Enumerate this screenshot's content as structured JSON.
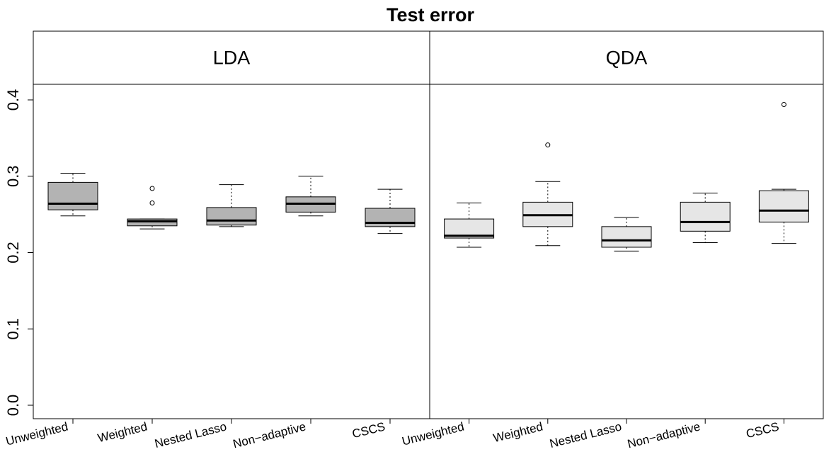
{
  "chart_data": {
    "type": "boxplot",
    "title": "Test error",
    "xlabel": "",
    "ylabel": "",
    "ylim": [
      0.0,
      0.42
    ],
    "yticks": [
      "0.0",
      "0.1",
      "0.2",
      "0.3",
      "0.4"
    ],
    "categories": [
      "Unweighted",
      "Weighted",
      "Nested Lasso",
      "Non−adaptive",
      "CSCS"
    ],
    "colors": {
      "LDA": "#b3b3b3",
      "QDA": "#e6e6e6",
      "line": "#000000"
    },
    "panels": [
      {
        "name": "LDA",
        "boxes": [
          {
            "category": "Unweighted",
            "min": 0.248,
            "q1": 0.256,
            "median": 0.264,
            "q3": 0.292,
            "max": 0.304,
            "outliers": []
          },
          {
            "category": "Weighted",
            "min": 0.231,
            "q1": 0.235,
            "median": 0.241,
            "q3": 0.244,
            "max": 0.244,
            "outliers": [
              0.265,
              0.284
            ]
          },
          {
            "category": "Nested Lasso",
            "min": 0.234,
            "q1": 0.236,
            "median": 0.242,
            "q3": 0.259,
            "max": 0.289,
            "outliers": []
          },
          {
            "category": "Non−adaptive",
            "min": 0.248,
            "q1": 0.253,
            "median": 0.264,
            "q3": 0.273,
            "max": 0.3,
            "outliers": []
          },
          {
            "category": "CSCS",
            "min": 0.225,
            "q1": 0.234,
            "median": 0.239,
            "q3": 0.258,
            "max": 0.283,
            "outliers": []
          }
        ]
      },
      {
        "name": "QDA",
        "boxes": [
          {
            "category": "Unweighted",
            "min": 0.207,
            "q1": 0.219,
            "median": 0.222,
            "q3": 0.244,
            "max": 0.265,
            "outliers": []
          },
          {
            "category": "Weighted",
            "min": 0.209,
            "q1": 0.234,
            "median": 0.249,
            "q3": 0.266,
            "max": 0.293,
            "outliers": [
              0.341
            ]
          },
          {
            "category": "Nested Lasso",
            "min": 0.202,
            "q1": 0.207,
            "median": 0.216,
            "q3": 0.234,
            "max": 0.246,
            "outliers": []
          },
          {
            "category": "Non−adaptive",
            "min": 0.213,
            "q1": 0.228,
            "median": 0.24,
            "q3": 0.266,
            "max": 0.278,
            "outliers": []
          },
          {
            "category": "CSCS",
            "min": 0.212,
            "q1": 0.24,
            "median": 0.255,
            "q3": 0.281,
            "max": 0.283,
            "outliers": [
              0.394
            ]
          }
        ]
      }
    ]
  }
}
